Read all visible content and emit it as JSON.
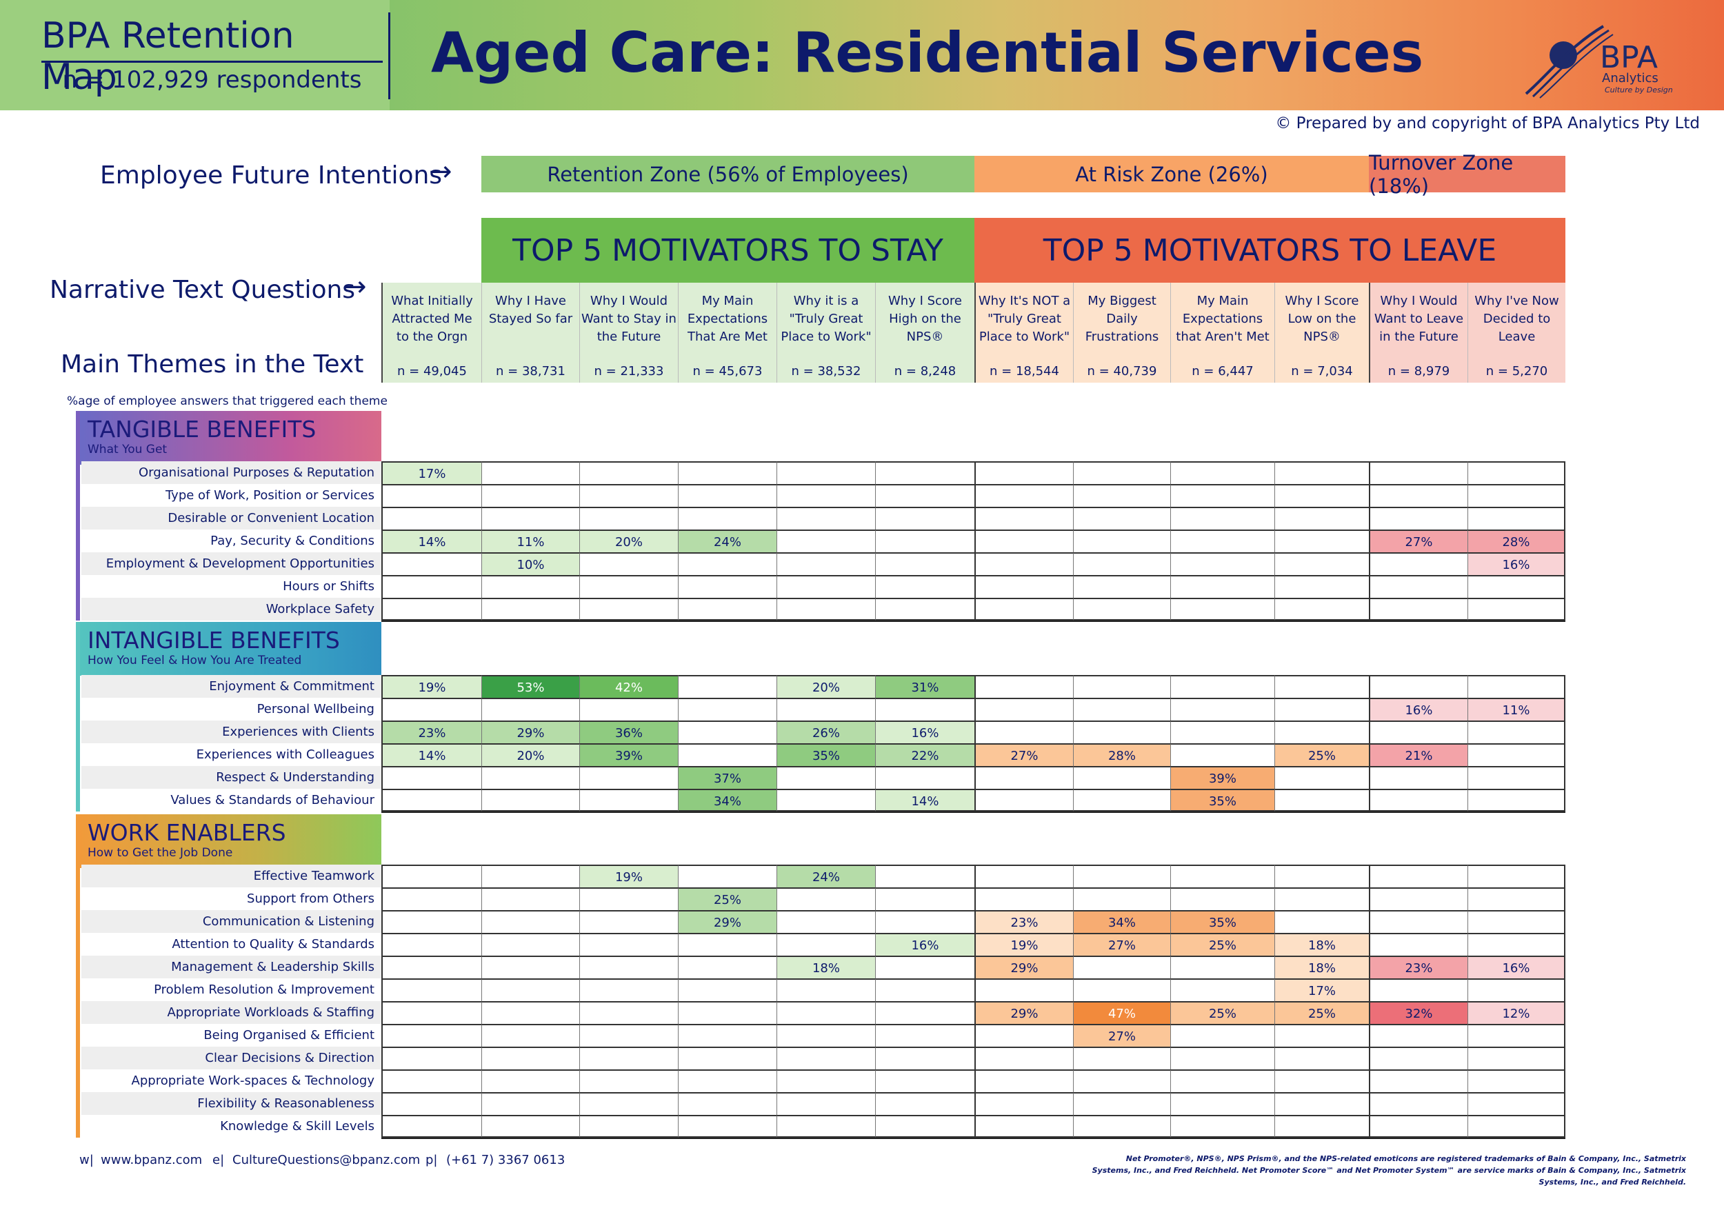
{
  "header": {
    "brand_title": "BPA Retention Map",
    "brand_n": "n = 102,929 respondents",
    "main_title": "Aged Care: Residential Services",
    "logo_name": "BPA",
    "logo_sub": "Analytics",
    "logo_tagline": "Culture by Design",
    "copyright": "© Prepared by and copyright of BPA Analytics Pty Ltd"
  },
  "side_labels": {
    "future_intentions": "Employee Future Intentions",
    "narrative": "Narrative Text Questions",
    "themes": "Main Themes in the Text",
    "pct_note": "%age of employee answers that triggered each theme"
  },
  "zones": {
    "retention": "Retention Zone (56% of Employees)",
    "risk": "At Risk Zone (26%)",
    "turnover": "Turnover Zone (18%)"
  },
  "motivators": {
    "stay": "TOP 5 MOTIVATORS TO STAY",
    "leave": "TOP 5 MOTIVATORS TO LEAVE"
  },
  "questions": [
    {
      "q": "What Initially Attracted Me to the Orgn",
      "n": "n = 49,045"
    },
    {
      "q": "Why I Have Stayed So far",
      "n": "n = 38,731"
    },
    {
      "q": "Why I Would Want to Stay in the Future",
      "n": "n = 21,333"
    },
    {
      "q": "My Main Expectations That Are Met",
      "n": "n = 45,673"
    },
    {
      "q": "Why it is a \"Truly Great Place to Work\"",
      "n": "n = 38,532"
    },
    {
      "q": "Why I Score High on the NPS®",
      "n": "n = 8,248"
    },
    {
      "q": "Why It's NOT a \"Truly Great Place to Work\"",
      "n": "n = 18,544"
    },
    {
      "q": "My Biggest Daily Frustrations",
      "n": "n = 40,739"
    },
    {
      "q": "My Main Expectations that Aren't Met",
      "n": "n = 6,447"
    },
    {
      "q": "Why I Score Low on the NPS®",
      "n": "n = 7,034"
    },
    {
      "q": "Why I Would Want to Leave in the Future",
      "n": "n = 8,979"
    },
    {
      "q": "Why I've Now Decided to Leave",
      "n": "n = 5,270"
    }
  ],
  "categories": [
    {
      "title": "TANGIBLE BENEFITS",
      "subtitle": "What You Get",
      "rows": [
        {
          "label": "Organisational Purposes & Reputation",
          "values": [
            "17%",
            "",
            "",
            "",
            "",
            "",
            "",
            "",
            "",
            "",
            "",
            ""
          ]
        },
        {
          "label": "Type of Work, Position or Services",
          "values": [
            "",
            "",
            "",
            "",
            "",
            "",
            "",
            "",
            "",
            "",
            "",
            ""
          ]
        },
        {
          "label": "Desirable or Convenient Location",
          "values": [
            "",
            "",
            "",
            "",
            "",
            "",
            "",
            "",
            "",
            "",
            "",
            ""
          ]
        },
        {
          "label": "Pay, Security & Conditions",
          "values": [
            "14%",
            "11%",
            "20%",
            "24%",
            "",
            "",
            "",
            "",
            "",
            "",
            "27%",
            "28%"
          ]
        },
        {
          "label": "Employment & Development Opportunities",
          "values": [
            "",
            "10%",
            "",
            "",
            "",
            "",
            "",
            "",
            "",
            "",
            "",
            "16%"
          ]
        },
        {
          "label": "Hours or Shifts",
          "values": [
            "",
            "",
            "",
            "",
            "",
            "",
            "",
            "",
            "",
            "",
            "",
            ""
          ]
        },
        {
          "label": "Workplace Safety",
          "values": [
            "",
            "",
            "",
            "",
            "",
            "",
            "",
            "",
            "",
            "",
            "",
            ""
          ]
        }
      ]
    },
    {
      "title": "INTANGIBLE BENEFITS",
      "subtitle": "How You Feel & How You Are Treated",
      "rows": [
        {
          "label": "Enjoyment & Commitment",
          "values": [
            "19%",
            "53%",
            "42%",
            "",
            "20%",
            "31%",
            "",
            "",
            "",
            "",
            "",
            ""
          ]
        },
        {
          "label": "Personal Wellbeing",
          "values": [
            "",
            "",
            "",
            "",
            "",
            "",
            "",
            "",
            "",
            "",
            "16%",
            "11%"
          ]
        },
        {
          "label": "Experiences with Clients",
          "values": [
            "23%",
            "29%",
            "36%",
            "",
            "26%",
            "16%",
            "",
            "",
            "",
            "",
            "",
            ""
          ]
        },
        {
          "label": "Experiences with Colleagues",
          "values": [
            "14%",
            "20%",
            "39%",
            "",
            "35%",
            "22%",
            "27%",
            "28%",
            "",
            "25%",
            "21%",
            ""
          ]
        },
        {
          "label": "Respect & Understanding",
          "values": [
            "",
            "",
            "",
            "37%",
            "",
            "",
            "",
            "",
            "39%",
            "",
            "",
            ""
          ]
        },
        {
          "label": "Values & Standards of Behaviour",
          "values": [
            "",
            "",
            "",
            "34%",
            "",
            "14%",
            "",
            "",
            "35%",
            "",
            "",
            ""
          ]
        }
      ]
    },
    {
      "title": "WORK ENABLERS",
      "subtitle": "How to Get the Job Done",
      "rows": [
        {
          "label": "Effective Teamwork",
          "values": [
            "",
            "",
            "19%",
            "",
            "24%",
            "",
            "",
            "",
            "",
            "",
            "",
            ""
          ]
        },
        {
          "label": "Support from Others",
          "values": [
            "",
            "",
            "",
            "25%",
            "",
            "",
            "",
            "",
            "",
            "",
            "",
            ""
          ]
        },
        {
          "label": "Communication & Listening",
          "values": [
            "",
            "",
            "",
            "29%",
            "",
            "",
            "23%",
            "34%",
            "35%",
            "",
            "",
            ""
          ]
        },
        {
          "label": "Attention to Quality & Standards",
          "values": [
            "",
            "",
            "",
            "",
            "",
            "16%",
            "19%",
            "27%",
            "25%",
            "18%",
            "",
            ""
          ]
        },
        {
          "label": "Management & Leadership Skills",
          "values": [
            "",
            "",
            "",
            "",
            "18%",
            "",
            "29%",
            "",
            "",
            "18%",
            "23%",
            "16%"
          ]
        },
        {
          "label": "Problem Resolution & Improvement",
          "values": [
            "",
            "",
            "",
            "",
            "",
            "",
            "",
            "",
            "",
            "17%",
            "",
            ""
          ]
        },
        {
          "label": "Appropriate Workloads & Staffing",
          "values": [
            "",
            "",
            "",
            "",
            "",
            "",
            "29%",
            "47%",
            "25%",
            "25%",
            "32%",
            "12%"
          ]
        },
        {
          "label": "Being Organised & Efficient",
          "values": [
            "",
            "",
            "",
            "",
            "",
            "",
            "",
            "27%",
            "",
            "",
            "",
            ""
          ]
        },
        {
          "label": "Clear Decisions & Direction",
          "values": [
            "",
            "",
            "",
            "",
            "",
            "",
            "",
            "",
            "",
            "",
            "",
            ""
          ]
        },
        {
          "label": "Appropriate Work-spaces & Technology",
          "values": [
            "",
            "",
            "",
            "",
            "",
            "",
            "",
            "",
            "",
            "",
            "",
            ""
          ]
        },
        {
          "label": "Flexibility & Reasonableness",
          "values": [
            "",
            "",
            "",
            "",
            "",
            "",
            "",
            "",
            "",
            "",
            "",
            ""
          ]
        },
        {
          "label": "Knowledge & Skill Levels",
          "values": [
            "",
            "",
            "",
            "",
            "",
            "",
            "",
            "",
            "",
            "",
            "",
            ""
          ]
        }
      ]
    }
  ],
  "colors": {
    "stay_header": "#6dbb4e",
    "leave_header": "#ec6a48",
    "retention_zone": "#8fc878",
    "risk_zone": "#f8a466",
    "turnover_zone": "#ec7a64",
    "stay_q_bg": "#ddeed5",
    "risk_q_bg": "#fde3cc",
    "turnover_q_bg": "#f9d1ca"
  },
  "footer": {
    "web_label": "w|",
    "web": "www.bpanz.com",
    "email_label": "e|",
    "email": "CultureQuestions@bpanz.com",
    "phone_label": "p|",
    "phone": "(+61 7) 3367 0613",
    "legal": "Net Promoter®, NPS®, NPS Prism®, and the NPS-related emoticons are registered trademarks of Bain & Company, Inc., Satmetrix Systems, Inc., and Fred Reichheld. Net Promoter Score℠ and Net Promoter System℠ are service marks of Bain & Company, Inc., Satmetrix Systems, Inc., and Fred Reichheld."
  }
}
